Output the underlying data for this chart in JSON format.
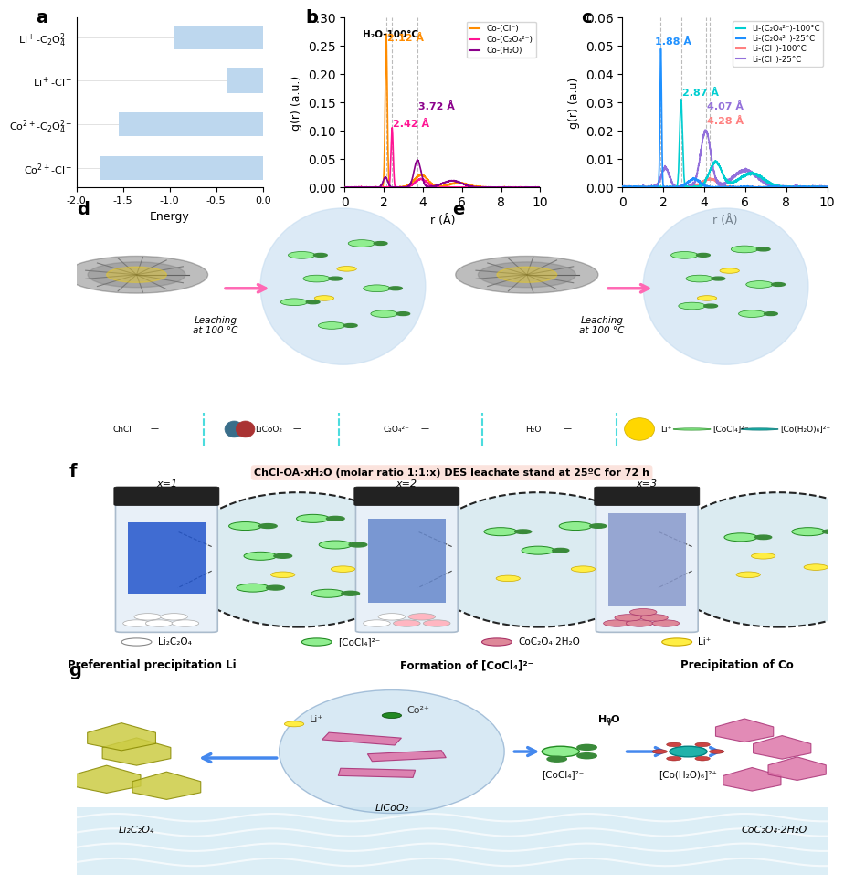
{
  "panel_a": {
    "ylabels": [
      "Li⁺-C₂O₄²⁻",
      "Li⁺-Cl⁻",
      "Co²⁺-C₂O₄²⁻",
      "Co²⁺-Cl⁻"
    ],
    "values": [
      -0.95,
      -0.38,
      -1.55,
      -1.75
    ],
    "bar_color": "#BDD7EE",
    "xlabel": "Energy",
    "xlim_left": 0.0,
    "xlim_right": -2.0
  },
  "panel_b": {
    "subtitle": "H₂O-100°C",
    "xlim": [
      0,
      10
    ],
    "ylim": [
      0,
      0.3
    ],
    "ylabel": "g(r) (a.u.)",
    "xlabel": "r (Å)",
    "vlines": [
      2.12,
      2.42,
      3.72
    ],
    "ann_212": {
      "text": "2.12 Å",
      "color": "#FF8C00"
    },
    "ann_372": {
      "text": "3.72 Å",
      "color": "#8B008B"
    },
    "ann_242": {
      "text": "2.42 Å",
      "color": "#FF1493"
    },
    "legend": [
      {
        "label": "Co-(Cl⁻)",
        "color": "#FF8C00"
      },
      {
        "label": "Co-(C₂O₄²⁻)",
        "color": "#FF1493"
      },
      {
        "label": "Co-(H₂O)",
        "color": "#8B008B"
      }
    ]
  },
  "panel_c": {
    "xlim": [
      0,
      10
    ],
    "ylim": [
      0,
      0.06
    ],
    "ylabel": "g(r) (a.u)",
    "xlabel": "r (Å)",
    "vlines": [
      1.88,
      2.87,
      4.07,
      4.28
    ],
    "ann_188": {
      "text": "1.88 Å",
      "color": "#1E90FF"
    },
    "ann_287": {
      "text": "2.87 Å",
      "color": "#00CED1"
    },
    "ann_407": {
      "text": "4.07 Å",
      "color": "#9370DB"
    },
    "ann_428": {
      "text": "4.28 Å",
      "color": "#FF8080"
    },
    "legend": [
      {
        "label": "Li-(C₂O₄²⁻)-100°C",
        "color": "#00CED1"
      },
      {
        "label": "Li-(C₂O₄²⁻)-25°C",
        "color": "#1E90FF"
      },
      {
        "label": "Li-(Cl⁻)-100°C",
        "color": "#FF8080"
      },
      {
        "label": "Li-(Cl⁻)-25°C",
        "color": "#9370DB"
      }
    ]
  },
  "panel_f_title": "ChCl-OA-xH₂O (molar ratio 1:1:x) DES leachate stand at 25ºC for 72 h",
  "panel_f_bg": "#F5E8E8",
  "panel_g_title_left": "Preferential precipitation Li",
  "panel_g_title_mid": "Formation of [CoCl₄]²⁻",
  "panel_g_title_right": "Precipitation of Co",
  "bg": "#FFFFFF"
}
